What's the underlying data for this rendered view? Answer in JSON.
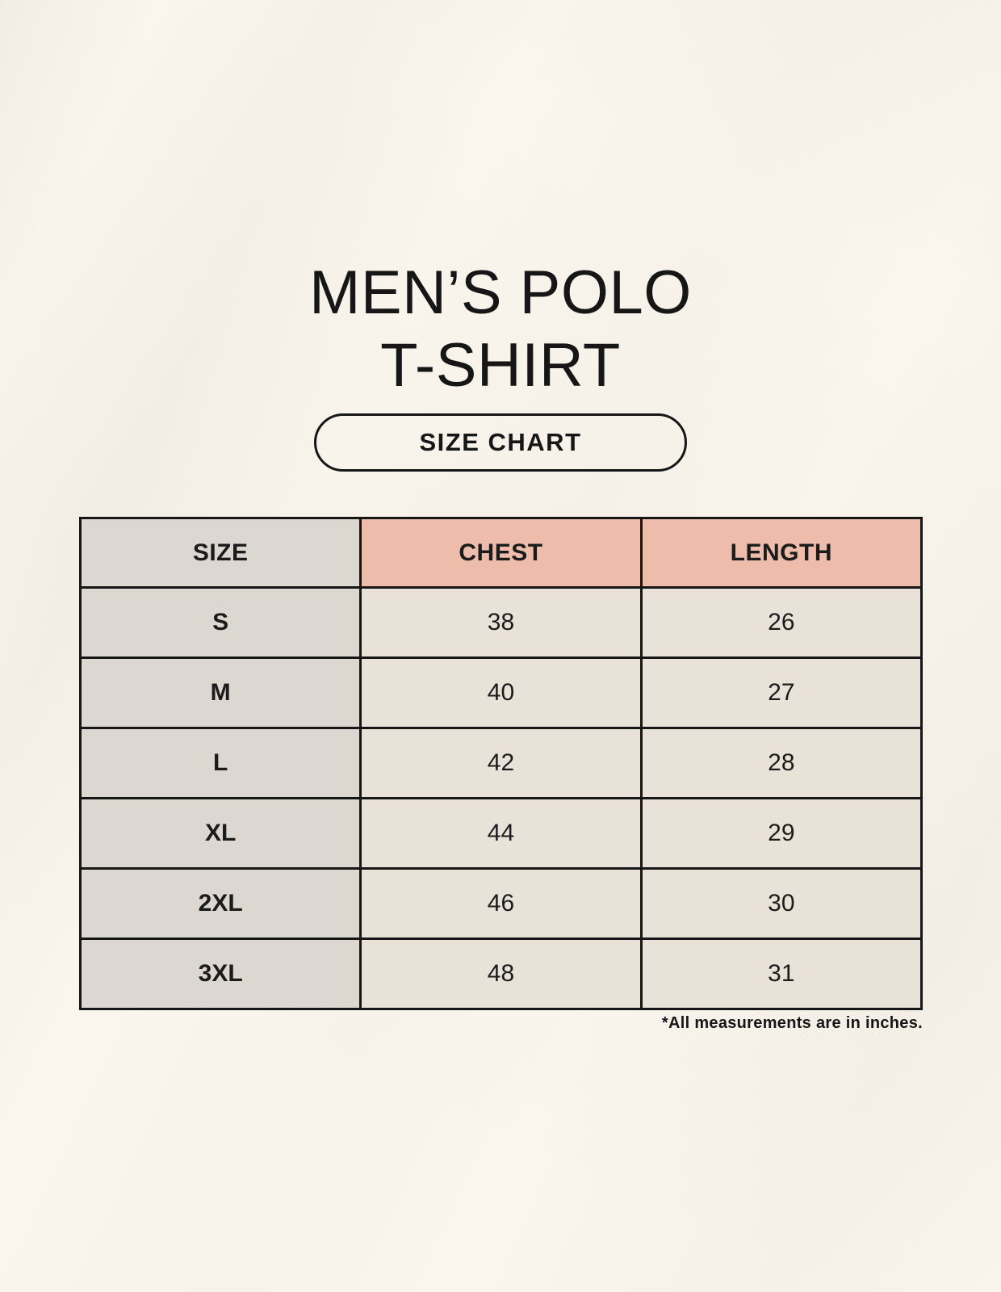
{
  "page": {
    "title_line1": "MEN’S POLO",
    "title_line2": "T-SHIRT",
    "badge_label": "SIZE CHART",
    "footnote": "*All measurements are in inches."
  },
  "colors": {
    "background": "#faf6ee",
    "size_column_bg": "#ddd7d1",
    "header_accent_bg": "#eebcab",
    "value_cell_bg": "#e9e2d8",
    "border_and_text": "#161616"
  },
  "chart_data": {
    "type": "table",
    "title": "MEN’S POLO T-SHIRT — SIZE CHART",
    "columns": [
      "SIZE",
      "CHEST",
      "LENGTH"
    ],
    "rows": [
      {
        "size": "S",
        "chest": "38",
        "length": "26"
      },
      {
        "size": "M",
        "chest": "40",
        "length": "27"
      },
      {
        "size": "L",
        "chest": "42",
        "length": "28"
      },
      {
        "size": "XL",
        "chest": "44",
        "length": "29"
      },
      {
        "size": "2XL",
        "chest": "46",
        "length": "30"
      },
      {
        "size": "3XL",
        "chest": "48",
        "length": "31"
      }
    ],
    "note": "*All measurements are in inches.",
    "units": "inches"
  }
}
